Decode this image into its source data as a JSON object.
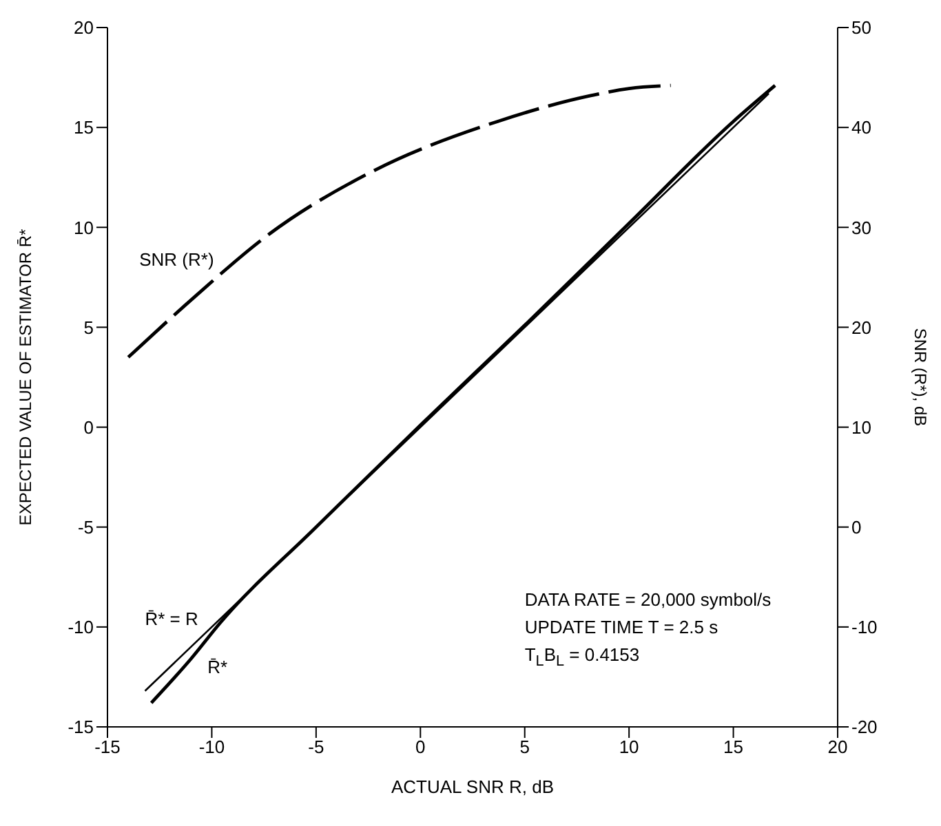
{
  "chart_data": {
    "type": "line",
    "xlabel": "ACTUAL SNR R, dB",
    "ylabel": "EXPECTED VALUE OF ESTIMATOR R̄*",
    "y2label": "SNR (R*), dB",
    "xlim": [
      -15,
      20
    ],
    "xticks": [
      -15,
      -10,
      -5,
      0,
      5,
      10,
      15,
      20
    ],
    "ylim": [
      -15,
      20
    ],
    "yticks": [
      -15,
      -10,
      -5,
      0,
      5,
      10,
      15,
      20
    ],
    "y2lim": [
      -20,
      50
    ],
    "y2ticks": [
      -20,
      -10,
      0,
      10,
      20,
      30,
      40,
      50
    ],
    "marker": "none",
    "series": [
      {
        "name": "SNR (R*)",
        "color": "#000000",
        "axis": "y2",
        "line_style": "dashed",
        "x": [
          -14,
          -10.9,
          -7.2,
          -2.3,
          3.7,
          8.2,
          10,
          12
        ],
        "values": [
          17,
          22.9,
          29.4,
          35.6,
          40.6,
          43.2,
          43.9,
          44.2
        ]
      },
      {
        "name": "R̄* = R",
        "color": "#000000",
        "line_style": "solid",
        "x": [
          -13.2,
          16.7
        ],
        "values": [
          -13.2,
          16.7
        ]
      },
      {
        "name": "R̄*",
        "color": "#000000",
        "line_style": "solid",
        "x": [
          -12.9,
          -11,
          -9.6,
          -5,
          0,
          5,
          10,
          15,
          17
        ],
        "values": [
          -13.8,
          -11.6,
          -9.8,
          -5,
          0.1,
          5.1,
          10.2,
          15.3,
          17.1
        ]
      }
    ],
    "annotations": [
      "DATA RATE = 20,000 symbol/s",
      "UPDATE TIME T = 2.5 s",
      "T$_{L}$B$_{L}$ = 0.4153"
    ]
  }
}
